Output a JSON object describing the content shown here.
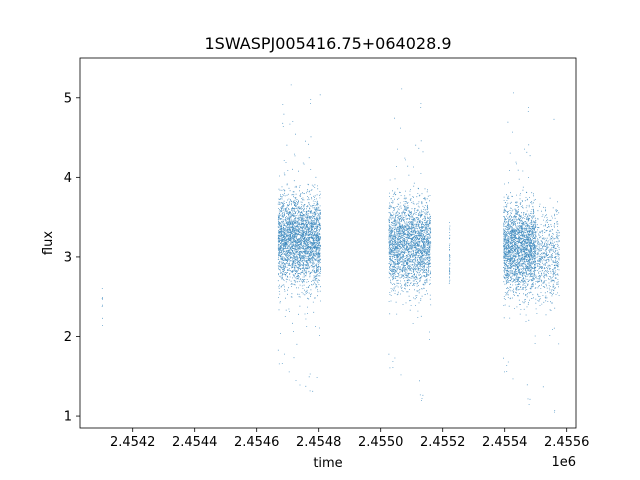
{
  "chart_data": {
    "type": "scatter",
    "title": "1SWASPJ005416.75+064028.9",
    "xlabel": "time",
    "ylabel": "flux",
    "x_offset_label": "1e6",
    "xlim": [
      2454030,
      2455630
    ],
    "ylim": [
      0.85,
      5.5
    ],
    "x_ticks": [
      2454200,
      2454400,
      2454600,
      2454800,
      2455000,
      2455200,
      2455400,
      2455600
    ],
    "x_tick_labels": [
      "2.4542",
      "2.4544",
      "2.4546",
      "2.4548",
      "2.4550",
      "2.4552",
      "2.4554",
      "2.4556"
    ],
    "y_ticks": [
      1,
      2,
      3,
      4,
      5
    ],
    "y_tick_labels": [
      "1",
      "2",
      "3",
      "4",
      "5"
    ],
    "grid": false,
    "marker_color": "#1f77b4",
    "clusters": [
      {
        "x_range": [
          2454100,
          2454102
        ],
        "y_center": 2.4,
        "y_spread": 0.3,
        "n": 8
      },
      {
        "x_range": [
          2454668,
          2454805
        ],
        "y_center": 3.2,
        "y_spread": 0.5,
        "n": 3200
      },
      {
        "x_range": [
          2455025,
          2455160
        ],
        "y_center": 3.15,
        "y_spread": 0.5,
        "n": 3200
      },
      {
        "x_range": [
          2455220,
          2455222
        ],
        "y_center": 3.0,
        "y_spread": 0.35,
        "n": 40
      },
      {
        "x_range": [
          2455395,
          2455500
        ],
        "y_center": 3.1,
        "y_spread": 0.5,
        "n": 2400
      },
      {
        "x_range": [
          2455502,
          2455575
        ],
        "y_center": 3.0,
        "y_spread": 0.5,
        "n": 600
      }
    ]
  }
}
